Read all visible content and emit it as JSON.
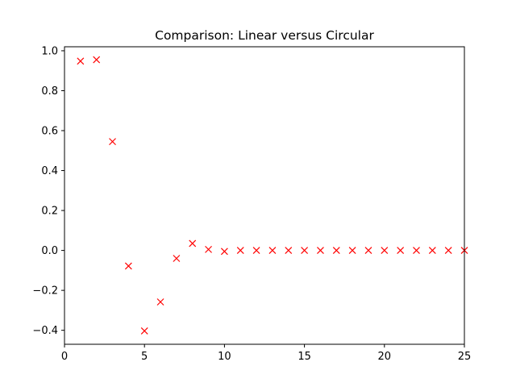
{
  "chart_data": {
    "type": "scatter",
    "title": "Comparison: Linear versus Circular",
    "xlabel": "",
    "ylabel": "",
    "xlim": [
      0,
      25
    ],
    "ylim": [
      -0.47,
      1.02
    ],
    "xticks": [
      0,
      5,
      10,
      15,
      20,
      25
    ],
    "xtick_labels": [
      "0",
      "5",
      "10",
      "15",
      "20",
      "25"
    ],
    "yticks": [
      -0.4,
      -0.2,
      0.0,
      0.2,
      0.4,
      0.6,
      0.8,
      1.0
    ],
    "ytick_labels": [
      "−0.4",
      "−0.2",
      "0.0",
      "0.2",
      "0.4",
      "0.6",
      "0.8",
      "1.0"
    ],
    "grid": false,
    "marker": "x",
    "series": [
      {
        "color": "#ff0000",
        "x": [
          1,
          2,
          3,
          4,
          5,
          6,
          7,
          8,
          9,
          10,
          11,
          12,
          13,
          14,
          15,
          16,
          17,
          18,
          19,
          20,
          21,
          22,
          23,
          24,
          25
        ],
        "y": [
          0.948,
          0.955,
          0.545,
          -0.078,
          -0.403,
          -0.258,
          -0.04,
          0.035,
          0.005,
          -0.005,
          0.0,
          0.0,
          0.0,
          0.0,
          0.0,
          0.0,
          0.0,
          0.0,
          0.0,
          0.0,
          0.0,
          0.0,
          0.0,
          0.0,
          0.0
        ]
      }
    ]
  }
}
